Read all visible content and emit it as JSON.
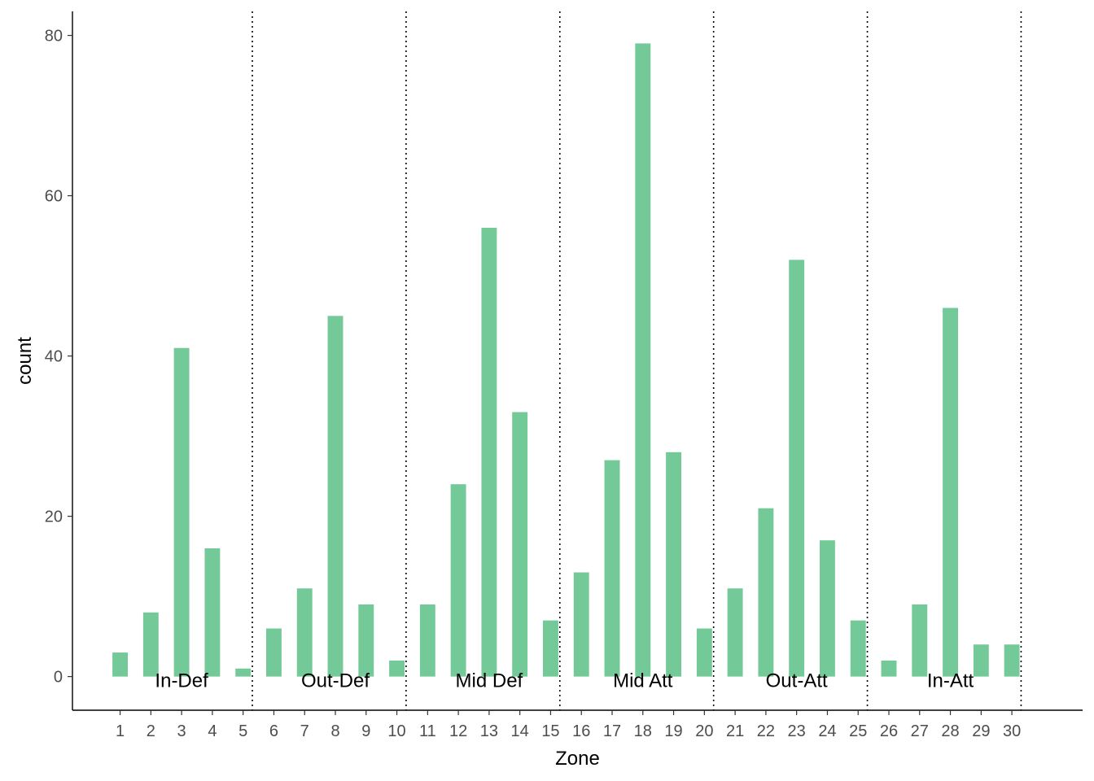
{
  "chart_data": {
    "type": "bar",
    "categories": [
      "1",
      "2",
      "3",
      "4",
      "5",
      "6",
      "7",
      "8",
      "9",
      "10",
      "11",
      "12",
      "13",
      "14",
      "15",
      "16",
      "17",
      "18",
      "19",
      "20",
      "21",
      "22",
      "23",
      "24",
      "25",
      "26",
      "27",
      "28",
      "29",
      "30"
    ],
    "values": [
      3,
      8,
      41,
      16,
      1,
      6,
      11,
      45,
      9,
      2,
      9,
      24,
      56,
      33,
      7,
      13,
      27,
      79,
      28,
      6,
      11,
      21,
      52,
      17,
      7,
      2,
      9,
      46,
      4,
      4
    ],
    "xlabel": "Zone",
    "ylabel": "count",
    "ylim": [
      -4.2,
      83
    ],
    "yticks": [
      0,
      20,
      40,
      60,
      80
    ],
    "bar_color": "#73c997",
    "grid": false,
    "dividers": [
      5.3,
      10.3,
      15.3,
      20.3,
      25.3,
      30.3
    ],
    "zone_labels": [
      {
        "text": "In-Def",
        "x": 3.0
      },
      {
        "text": "Out-Def",
        "x": 8.0
      },
      {
        "text": "Mid Def",
        "x": 13.0
      },
      {
        "text": "Mid Att",
        "x": 18.0
      },
      {
        "text": "Out-Att",
        "x": 23.0
      },
      {
        "text": "In-Att",
        "x": 28.0
      }
    ]
  }
}
